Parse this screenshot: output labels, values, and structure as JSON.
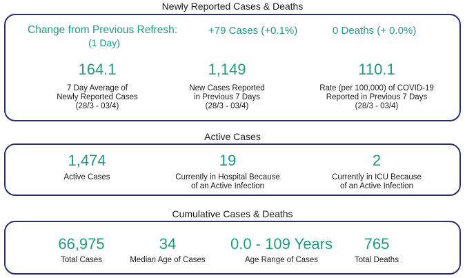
{
  "newly": {
    "title": "Newly Reported Cases & Deaths",
    "change_label_line1": "Change from Previous Refresh:",
    "change_label_line2": "(1 Day)",
    "cases_change": "+79 Cases (+0.1%)",
    "deaths_change": "0 Deaths (+ 0.0%)",
    "stats": [
      {
        "value": "164.1",
        "label1": "7 Day Average of",
        "label2": "Newly Reported Cases",
        "label3": "(28/3 - 03/4)"
      },
      {
        "value": "1,149",
        "label1": "New Cases Reported",
        "label2": "in Previous 7 Days",
        "label3": "(28/3 - 03/4)"
      },
      {
        "value": "110.1",
        "label1": "Rate (per 100,000) of COVID-19",
        "label2": "Reported in Previous 7 Days",
        "label3": "(28/3 - 03/4)"
      }
    ]
  },
  "active": {
    "title": "Active Cases",
    "stats": [
      {
        "value": "1,474",
        "label1": "Active Cases",
        "label2": ""
      },
      {
        "value": "19",
        "label1": "Currently in Hospital Because",
        "label2": "of an Active Infection"
      },
      {
        "value": "2",
        "label1": "Currently in ICU Because",
        "label2": "of an Active Infection"
      }
    ]
  },
  "cumulative": {
    "title": "Cumulative Cases & Deaths",
    "stats": [
      {
        "value": "66,975",
        "label": "Total Cases"
      },
      {
        "value": "34",
        "label": "Median Age of Cases"
      },
      {
        "value": "0.0 - 109 Years",
        "label": "Age Range of Cases"
      },
      {
        "value": "765",
        "label": "Total Deaths"
      }
    ]
  },
  "colors": {
    "accent": "#1f9a82",
    "border": "#2b2e6b"
  }
}
